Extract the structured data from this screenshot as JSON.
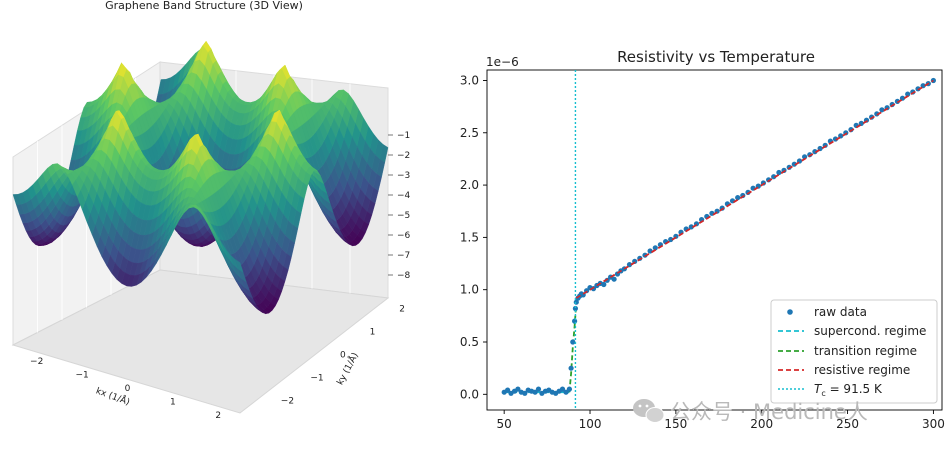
{
  "chart_data": [
    {
      "type": "surface3d",
      "title": "Graphene Band Structure (3D View)",
      "xlabel": "kx (1/Å)",
      "ylabel": "ky (1/Å)",
      "xticks": [
        "−2",
        "−1",
        "0",
        "1",
        "2"
      ],
      "yticks": [
        "−2",
        "−1",
        "0",
        "1",
        "2"
      ],
      "zticks": [
        "−1",
        "−2",
        "−3",
        "−4",
        "−5",
        "−6",
        "−7",
        "−8"
      ],
      "xlim": [
        -2.5,
        2.5
      ],
      "ylim": [
        -2.5,
        2.5
      ],
      "zlim": [
        -8.5,
        -0.5
      ],
      "colormap": "viridis",
      "surface": "valence band E(kx, ky) of graphene, peaks near -0.5 at K points, minimum near -8.5 at Γ"
    },
    {
      "type": "scatter",
      "title": "Resistivity vs Temperature",
      "offset_label": "1e−6",
      "xlim": [
        40,
        305
      ],
      "ylim": [
        -1.5e-07,
        3.1e-06
      ],
      "xticks": [
        "50",
        "100",
        "150",
        "200",
        "250",
        "300"
      ],
      "yticks": [
        "0.0",
        "0.5",
        "1.0",
        "1.5",
        "2.0",
        "2.5",
        "3.0"
      ],
      "grid": false,
      "legend_position": "lower-right",
      "tc": 91.5,
      "legend": {
        "raw": "raw data",
        "supercond": "supercond. regime",
        "transition": "transition regime",
        "resistive": "resistive regime",
        "tc_prefix": "T",
        "tc_sub": "c",
        "tc_suffix": " = 91.5 K"
      },
      "raw_data": {
        "x": [
          50,
          52,
          54,
          56,
          58,
          60,
          62,
          64,
          66,
          68,
          70,
          72,
          74,
          76,
          78,
          80,
          82,
          84,
          86,
          88,
          89,
          90,
          91,
          91.5,
          92,
          93,
          94,
          95,
          96,
          98,
          100,
          102,
          104,
          106,
          108,
          110,
          112,
          114,
          116,
          118,
          120,
          123,
          126,
          129,
          132,
          135,
          138,
          141,
          144,
          147,
          150,
          153,
          156,
          159,
          162,
          165,
          168,
          171,
          174,
          177,
          180,
          183,
          186,
          189,
          192,
          195,
          198,
          201,
          204,
          207,
          210,
          213,
          216,
          219,
          222,
          225,
          228,
          231,
          234,
          237,
          240,
          243,
          246,
          249,
          252,
          255,
          258,
          261,
          264,
          267,
          270,
          273,
          276,
          279,
          282,
          285,
          288,
          291,
          294,
          297,
          300
        ],
        "y": [
          2e-08,
          4e-08,
          1e-08,
          3e-08,
          5e-08,
          2e-08,
          1e-08,
          4e-08,
          3e-08,
          2e-08,
          5e-08,
          1e-08,
          3e-08,
          4e-08,
          2e-08,
          1e-08,
          3e-08,
          5e-08,
          2e-08,
          5e-08,
          2.5e-07,
          5e-07,
          7e-07,
          8.2e-07,
          8.8e-07,
          9.2e-07,
          9.4e-07,
          9.6e-07,
          9.5e-07,
          9.9e-07,
          1.02e-06,
          1.01e-06,
          1.04e-06,
          1.06e-06,
          1.05e-06,
          1.09e-06,
          1.12e-06,
          1.1e-06,
          1.15e-06,
          1.18e-06,
          1.2e-06,
          1.24e-06,
          1.27e-06,
          1.3e-06,
          1.33e-06,
          1.37e-06,
          1.4e-06,
          1.43e-06,
          1.46e-06,
          1.48e-06,
          1.51e-06,
          1.55e-06,
          1.58e-06,
          1.6e-06,
          1.63e-06,
          1.67e-06,
          1.7e-06,
          1.73e-06,
          1.75e-06,
          1.78e-06,
          1.82e-06,
          1.85e-06,
          1.88e-06,
          1.9e-06,
          1.93e-06,
          1.97e-06,
          1.99e-06,
          2.02e-06,
          2.05e-06,
          2.08e-06,
          2.12e-06,
          2.14e-06,
          2.17e-06,
          2.2e-06,
          2.23e-06,
          2.27e-06,
          2.29e-06,
          2.32e-06,
          2.35e-06,
          2.38e-06,
          2.42e-06,
          2.44e-06,
          2.47e-06,
          2.5e-06,
          2.53e-06,
          2.57e-06,
          2.59e-06,
          2.62e-06,
          2.65e-06,
          2.68e-06,
          2.72e-06,
          2.74e-06,
          2.77e-06,
          2.8e-06,
          2.83e-06,
          2.87e-06,
          2.89e-06,
          2.92e-06,
          2.95e-06,
          2.97e-06,
          3e-06
        ]
      },
      "series": [
        {
          "name": "supercond. regime",
          "x": [
            50,
            88
          ],
          "y": [
            2e-08,
            2e-08
          ],
          "color": "#17becf",
          "style": "dashed"
        },
        {
          "name": "transition regime",
          "x": [
            88,
            89,
            90,
            91,
            92
          ],
          "y": [
            2e-08,
            2e-07,
            4.5e-07,
            6.5e-07,
            8.8e-07
          ],
          "color": "#2ca02c",
          "style": "dashed"
        },
        {
          "name": "resistive regime",
          "x": [
            92,
            300
          ],
          "y": [
            9.2e-07,
            3e-06
          ],
          "color": "#d62728",
          "style": "dashed"
        }
      ]
    }
  ],
  "watermark": {
    "text": "公众号 · Medicine人"
  }
}
